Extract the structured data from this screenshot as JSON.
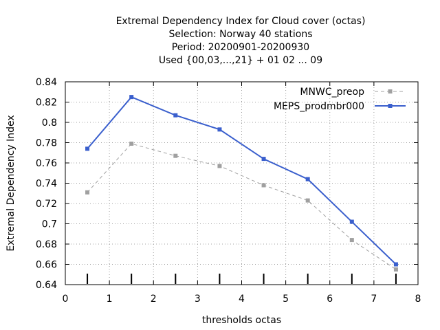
{
  "chart_data": {
    "type": "line",
    "title_lines": [
      "Extremal Dependency Index  for Cloud cover (octas)",
      "Selection: Norway     40 stations",
      "Period: 20200901-20200930",
      "Used {00,03,...,21} + 01 02 ... 09"
    ],
    "xlabel": "thresholds octas",
    "ylabel": "Extremal Dependency Index",
    "xlim": [
      0,
      8
    ],
    "ylim": [
      0.64,
      0.84
    ],
    "xticks": [
      0,
      1,
      2,
      3,
      4,
      5,
      6,
      7,
      8
    ],
    "yticks": [
      0.64,
      0.66,
      0.68,
      0.7,
      0.72,
      0.74,
      0.76,
      0.78,
      0.8,
      0.82,
      0.84
    ],
    "xtick_labels": [
      "0",
      "1",
      "2",
      "3",
      "4",
      "5",
      "6",
      "7",
      "8"
    ],
    "ytick_labels": [
      "0.64",
      "0.66",
      "0.68",
      "0.7",
      "0.72",
      "0.74",
      "0.76",
      "0.78",
      "0.8",
      "0.82",
      "0.84"
    ],
    "grid": true,
    "legend_position": "top-right",
    "x": [
      0.5,
      1.5,
      2.5,
      3.5,
      4.5,
      5.5,
      6.5,
      7.5
    ],
    "series": [
      {
        "name": "MNWC_preop",
        "color": "#a0a0a0",
        "dashed": true,
        "values": [
          0.731,
          0.779,
          0.767,
          0.757,
          0.738,
          0.723,
          0.684,
          0.655
        ]
      },
      {
        "name": "MEPS_prodmbr000",
        "color": "#3a5fcd",
        "dashed": false,
        "values": [
          0.774,
          0.825,
          0.807,
          0.793,
          0.764,
          0.744,
          0.702,
          0.66
        ]
      }
    ],
    "bottom_marks_x": [
      0.5,
      1.5,
      2.5,
      3.5,
      4.5,
      5.5,
      6.5,
      7.5
    ]
  }
}
